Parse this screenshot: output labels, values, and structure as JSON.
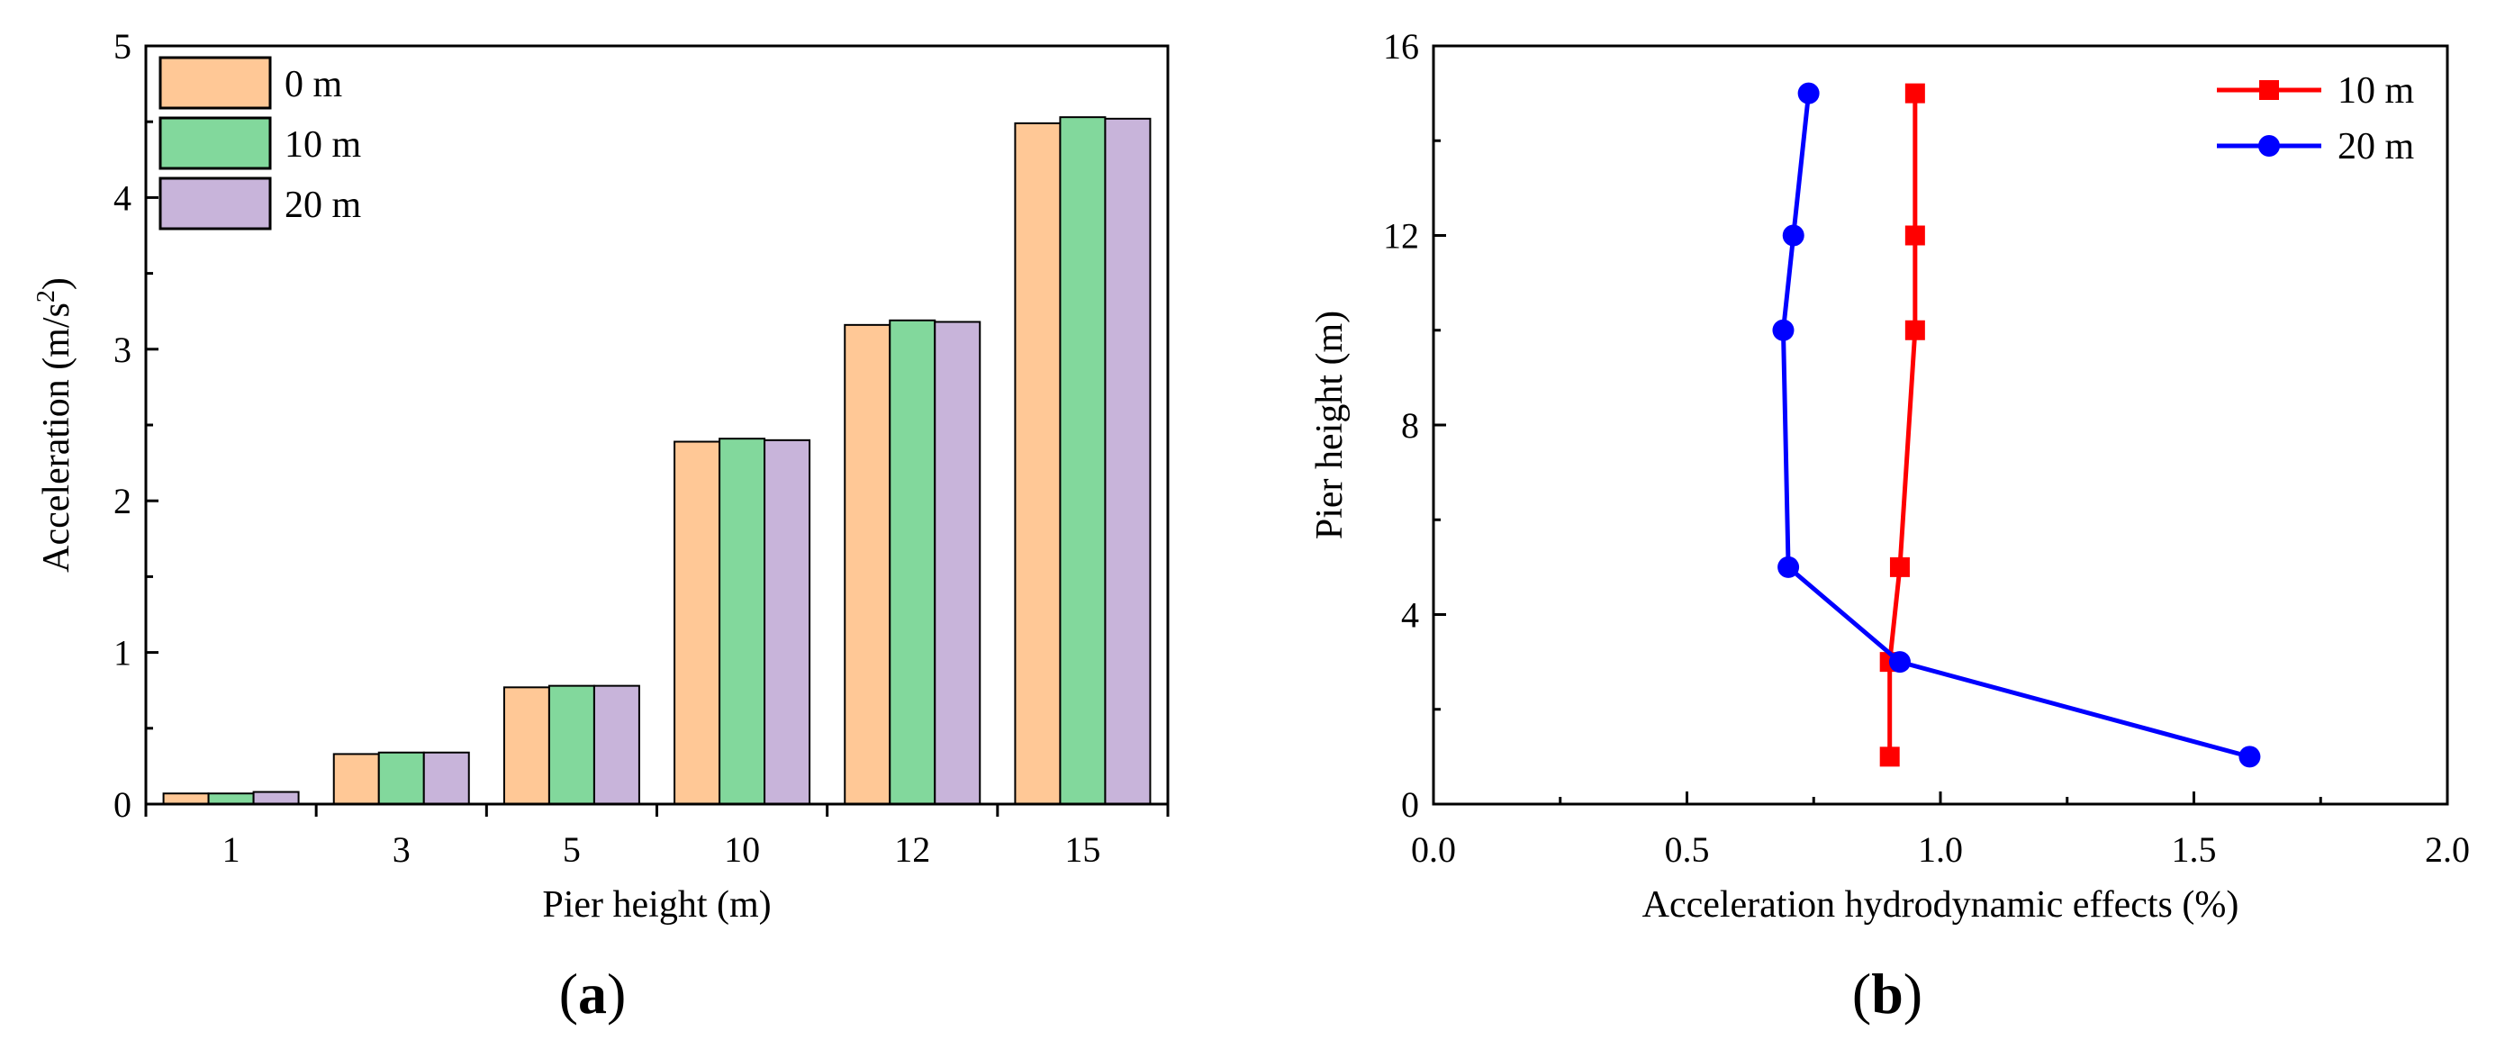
{
  "chart_data": [
    {
      "type": "bar",
      "panel_label": {
        "open": "(",
        "letter": "a",
        "close": ")"
      },
      "categories": [
        "1",
        "3",
        "5",
        "10",
        "12",
        "15"
      ],
      "series": [
        {
          "name": "0 m",
          "color": "#ffc896",
          "values": [
            0.07,
            0.33,
            0.77,
            2.39,
            3.16,
            4.49
          ]
        },
        {
          "name": "10 m",
          "color": "#82d89c",
          "values": [
            0.07,
            0.34,
            0.78,
            2.41,
            3.19,
            4.53
          ]
        },
        {
          "name": "20 m",
          "color": "#c8b4da",
          "values": [
            0.08,
            0.34,
            0.78,
            2.4,
            3.18,
            4.52
          ]
        }
      ],
      "xlabel": "Pier height (m)",
      "ylabel": {
        "text": "Acceleration (m/s",
        "sup": "2",
        "close": ")"
      },
      "ylim": [
        0,
        5
      ],
      "yticks": [
        "0",
        "1",
        "2",
        "3",
        "4",
        "5"
      ],
      "grid": false,
      "legend_position": "top-left"
    },
    {
      "type": "line",
      "panel_label": {
        "open": "(",
        "letter": "b",
        "close": ")"
      },
      "series": [
        {
          "name": "10 m",
          "color": "#ff0000",
          "marker": "square",
          "x": [
            0.9,
            0.9,
            0.92,
            0.95,
            0.95,
            0.95
          ],
          "y": [
            1,
            3,
            5,
            10,
            12,
            15
          ]
        },
        {
          "name": "20 m",
          "color": "#0000ff",
          "marker": "circle",
          "x": [
            1.61,
            0.92,
            0.7,
            0.69,
            0.71,
            0.74
          ],
          "y": [
            1,
            3,
            5,
            10,
            12,
            15
          ]
        }
      ],
      "xlabel": "Acceleration hydrodynamic effects (%)",
      "ylabel": "Pier height (m)",
      "xlim": [
        0.0,
        2.0
      ],
      "ylim": [
        0,
        16
      ],
      "xticks": [
        "0.0",
        "0.5",
        "1.0",
        "1.5",
        "2.0"
      ],
      "yticks": [
        "0",
        "4",
        "8",
        "12",
        "16"
      ],
      "grid": false,
      "legend_position": "top-right"
    }
  ]
}
